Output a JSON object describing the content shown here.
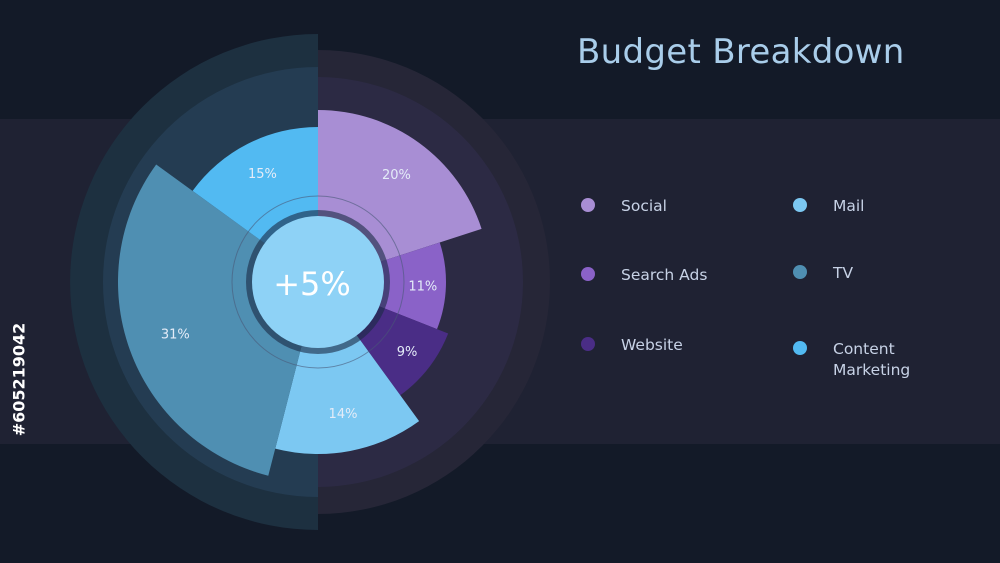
{
  "chart_data": {
    "type": "pie",
    "title": "Budget Breakdown",
    "center_label": "+5%",
    "slices": [
      {
        "name": "Social",
        "value": 20,
        "label": "20%",
        "color": "#a88ed4"
      },
      {
        "name": "Search Ads",
        "value": 11,
        "label": "11%",
        "color": "#8a62c8"
      },
      {
        "name": "Website",
        "value": 9,
        "label": "9%",
        "color": "#4a2d86"
      },
      {
        "name": "Mail",
        "value": 14,
        "label": "14%",
        "color": "#7cc8f2"
      },
      {
        "name": "TV",
        "value": 31,
        "label": "31%",
        "color": "#4f8fb2"
      },
      {
        "name": "Content Marketing",
        "value": 15,
        "label": "15%",
        "color": "#52baf2"
      }
    ],
    "legend": [
      {
        "name": "Social",
        "color": "#a88ed4"
      },
      {
        "name": "Search Ads",
        "color": "#8a62c8"
      },
      {
        "name": "Website",
        "color": "#4a2d86"
      },
      {
        "name": "Mail",
        "color": "#7cc8f2"
      },
      {
        "name": "TV",
        "color": "#4f8fb2"
      },
      {
        "name": "Content Marketing",
        "color": "#52baf2"
      }
    ],
    "legend_placement": "right"
  },
  "watermark": {
    "stock_id": "#605219042"
  }
}
